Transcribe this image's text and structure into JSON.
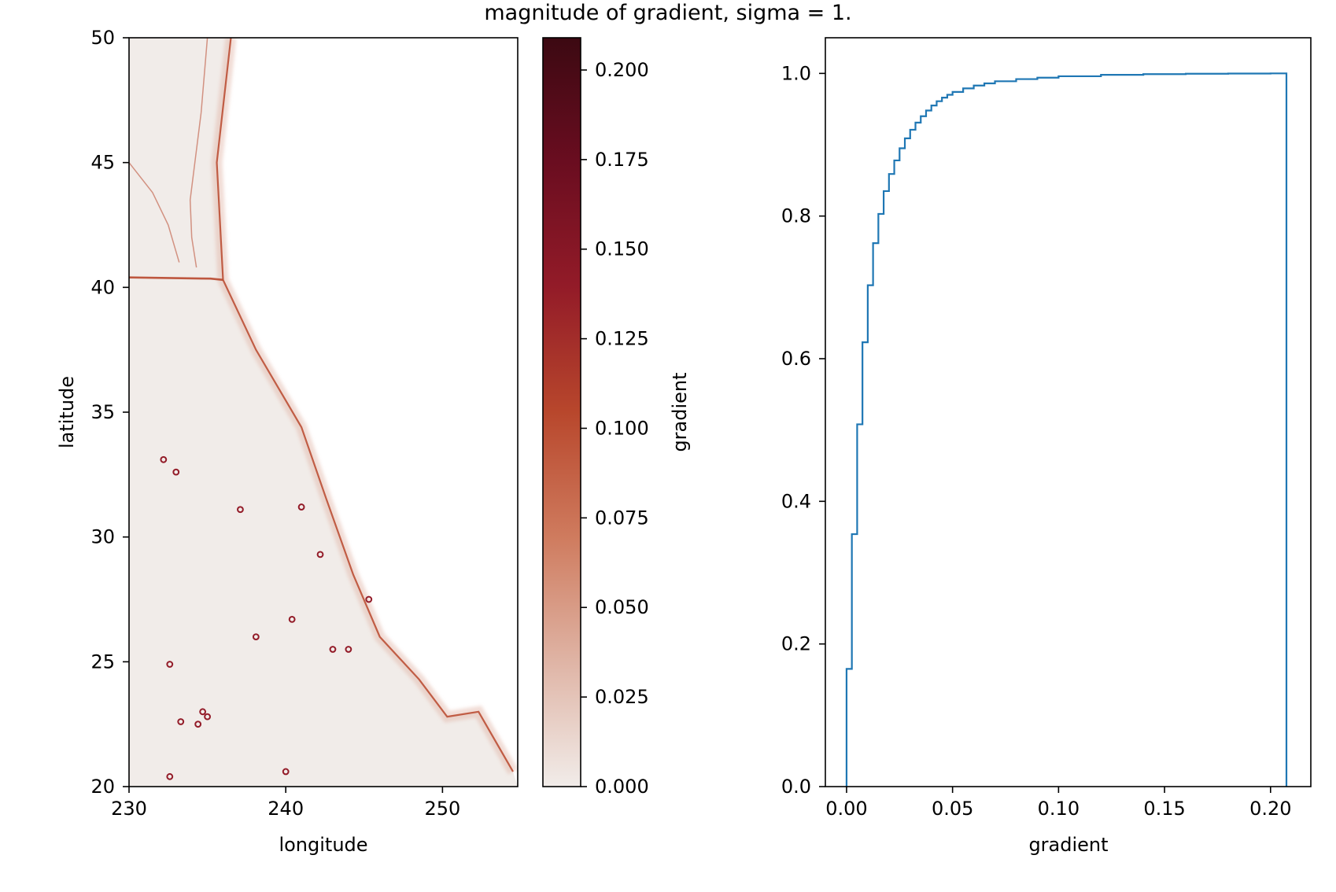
{
  "figure": {
    "title": "magnitude of gradient, sigma = 1."
  },
  "chart_data": [
    {
      "type": "heatmap",
      "xlabel": "longitude",
      "ylabel": "latitude",
      "xlim": [
        230,
        254.8
      ],
      "ylim": [
        20,
        50
      ],
      "xticks": [
        230,
        240,
        250
      ],
      "yticks": [
        20,
        25,
        30,
        35,
        40,
        45,
        50
      ],
      "colormap": "amp",
      "colorbar": {
        "label": "gradient",
        "range": [
          0,
          0.209
        ],
        "ticks": [
          "0.000",
          "0.025",
          "0.050",
          "0.075",
          "0.100",
          "0.125",
          "0.150",
          "0.175",
          "0.200"
        ],
        "colors": [
          "#f1ece9",
          "#dfb4a5",
          "#cf7b5e",
          "#b8472c",
          "#931b28",
          "#6a0d20",
          "#3c0912"
        ]
      },
      "features": {
        "coastline": [
          [
            236.5,
            50
          ],
          [
            235.6,
            45
          ],
          [
            236.0,
            40.3
          ],
          [
            238.1,
            37.5
          ],
          [
            241.0,
            34.4
          ],
          [
            242.6,
            31.5
          ],
          [
            244.3,
            28.5
          ],
          [
            246.0,
            26.0
          ],
          [
            248.5,
            24.3
          ],
          [
            250.3,
            22.8
          ],
          [
            252.3,
            23.0
          ],
          [
            254.5,
            20.6
          ]
        ],
        "ridges": [
          [
            [
              230,
              40.4
            ],
            [
              235.2,
              40.35
            ],
            [
              236.0,
              40.3
            ]
          ],
          [
            [
              235.0,
              50
            ],
            [
              234.6,
              47
            ],
            [
              234.2,
              45
            ],
            [
              233.9,
              43.5
            ],
            [
              234.0,
              42
            ],
            [
              234.3,
              40.8
            ]
          ],
          [
            [
              230,
              45
            ],
            [
              231.5,
              43.8
            ],
            [
              232.5,
              42.5
            ],
            [
              233.2,
              41.0
            ]
          ]
        ],
        "hotspots": [
          [
            232.2,
            33.1
          ],
          [
            233.0,
            32.6
          ],
          [
            237.1,
            31.1
          ],
          [
            242.2,
            29.3
          ],
          [
            244.0,
            25.5
          ],
          [
            232.6,
            24.9
          ],
          [
            233.3,
            22.6
          ],
          [
            234.4,
            22.5
          ],
          [
            235.0,
            22.8
          ],
          [
            238.1,
            26.0
          ],
          [
            240.4,
            26.7
          ],
          [
            232.6,
            20.4
          ],
          [
            240.0,
            20.6
          ],
          [
            243.0,
            25.5
          ],
          [
            245.3,
            27.5
          ],
          [
            241.0,
            31.2
          ],
          [
            234.7,
            23.0
          ]
        ]
      }
    },
    {
      "type": "line",
      "subtype": "cumulative_step_histogram",
      "xlabel": "gradient",
      "ylabel": "",
      "xlim": [
        -0.01,
        0.219
      ],
      "ylim": [
        0,
        1.05
      ],
      "xticks": [
        "0.00",
        "0.05",
        "0.10",
        "0.15",
        "0.20"
      ],
      "yticks": [
        "0.0",
        "0.2",
        "0.4",
        "0.6",
        "0.8",
        "1.0"
      ],
      "series": [
        {
          "color": "#1f77b4",
          "x": [
            0.0,
            0.0025,
            0.005,
            0.0075,
            0.01,
            0.0125,
            0.015,
            0.0175,
            0.02,
            0.0225,
            0.025,
            0.0275,
            0.03,
            0.0325,
            0.035,
            0.0375,
            0.04,
            0.0425,
            0.045,
            0.0475,
            0.05,
            0.055,
            0.06,
            0.065,
            0.07,
            0.08,
            0.09,
            0.1,
            0.12,
            0.14,
            0.16,
            0.18,
            0.2,
            0.2075
          ],
          "y": [
            0.165,
            0.354,
            0.508,
            0.623,
            0.703,
            0.762,
            0.803,
            0.835,
            0.859,
            0.878,
            0.895,
            0.909,
            0.921,
            0.931,
            0.94,
            0.948,
            0.955,
            0.961,
            0.966,
            0.97,
            0.974,
            0.979,
            0.983,
            0.986,
            0.989,
            0.992,
            0.994,
            0.996,
            0.998,
            0.999,
            0.9995,
            0.9998,
            1.0,
            1.0
          ]
        }
      ]
    }
  ]
}
